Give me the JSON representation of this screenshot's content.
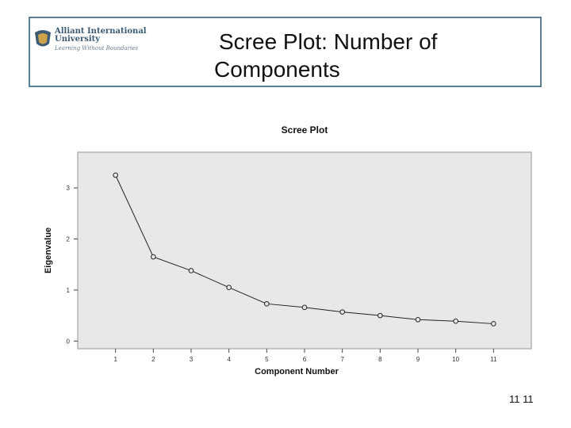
{
  "header": {
    "logo": {
      "name_line1": "Alliant International",
      "name_line2": "University",
      "tagline": "Learning Without Boundaries"
    },
    "title_line1": "Scree Plot: Number of",
    "title_line2": "Components"
  },
  "chart_data": {
    "type": "line",
    "title": "Scree Plot",
    "xlabel": "Component Number",
    "ylabel": "Eigenvalue",
    "x": [
      1,
      2,
      3,
      4,
      5,
      6,
      7,
      8,
      9,
      10,
      11
    ],
    "y": [
      3.25,
      1.65,
      1.38,
      1.05,
      0.73,
      0.66,
      0.57,
      0.5,
      0.42,
      0.39,
      0.34
    ],
    "xlim": [
      0,
      12
    ],
    "ylim": [
      -0.15,
      3.7
    ],
    "yticks": [
      0,
      1,
      2,
      3
    ],
    "grid": false,
    "plot_background": "#e8e8e8",
    "line_color": "#222222"
  },
  "footer": {
    "page_number": "11 11"
  }
}
